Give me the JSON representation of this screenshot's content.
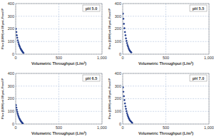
{
  "chart_data": [
    {
      "type": "scatter",
      "title": "pH 5.0",
      "x_label": "Volumetric Throughput (L/m²)",
      "y_label": "Flux (LMH) at 30 psi, Feed P",
      "x": [
        3,
        8,
        13,
        18,
        24,
        30,
        36,
        42,
        48,
        54,
        60,
        66,
        72,
        78,
        84,
        90
      ],
      "values": [
        200,
        175,
        150,
        130,
        110,
        95,
        80,
        68,
        58,
        48,
        40,
        33,
        27,
        20,
        15,
        10
      ],
      "color": "#1f3a8a",
      "marker": "diamond",
      "xlim": [
        0,
        1000
      ],
      "xticks": [
        0,
        500,
        {
          "value": 1000,
          "label": "1,000"
        }
      ],
      "ylim": [
        0,
        400
      ],
      "yticks": [
        0,
        100,
        200,
        300,
        400
      ],
      "grid": true
    },
    {
      "type": "scatter",
      "title": "pH 5.5",
      "x_label": "Volumetric Throughput (L/m²)",
      "y_label": "Flux (LMH) at 30 psi, Feed P",
      "x": [
        3,
        8,
        14,
        20,
        26,
        32,
        38,
        44,
        50,
        56,
        62,
        68,
        74,
        80,
        86,
        92,
        100
      ],
      "values": [
        320,
        280,
        240,
        205,
        175,
        150,
        125,
        105,
        88,
        72,
        60,
        48,
        38,
        30,
        24,
        18,
        14
      ],
      "color": "#1f3a8a",
      "marker": "diamond",
      "xlim": [
        0,
        1000
      ],
      "xticks": [
        0,
        500,
        {
          "value": 1000,
          "label": "1,000"
        }
      ],
      "ylim": [
        0,
        400
      ],
      "yticks": [
        0,
        100,
        200,
        300,
        400
      ],
      "grid": true
    },
    {
      "type": "scatter",
      "title": "pH 6.5",
      "x_label": "Volumetric Throughput (L/m²)",
      "y_label": "Flux (LMH) at 30 psi, Feed P",
      "x": [
        3,
        8,
        13,
        18,
        23,
        28,
        34,
        40,
        46,
        52,
        58,
        64,
        70,
        76,
        82
      ],
      "values": [
        150,
        130,
        112,
        96,
        82,
        70,
        58,
        48,
        40,
        32,
        25,
        19,
        14,
        9,
        5
      ],
      "color": "#1f3a8a",
      "marker": "diamond",
      "xlim": [
        0,
        1000
      ],
      "xticks": [
        0,
        500,
        {
          "value": 1000,
          "label": "1,000"
        }
      ],
      "ylim": [
        0,
        400
      ],
      "yticks": [
        0,
        100,
        200,
        300,
        400
      ],
      "grid": true
    },
    {
      "type": "scatter",
      "title": "pH 7.0",
      "x_label": "Volumetric Throughput (L/m²)",
      "y_label": "Flux (LMH) at 30 psi, Feed P",
      "x": [
        3,
        8,
        14,
        20,
        26,
        32,
        38,
        44,
        50,
        56,
        62,
        68,
        74,
        80,
        88,
        96,
        104,
        110
      ],
      "values": [
        290,
        255,
        220,
        190,
        163,
        140,
        120,
        102,
        86,
        72,
        60,
        50,
        41,
        33,
        26,
        20,
        14,
        10
      ],
      "color": "#1f3a8a",
      "marker": "diamond",
      "xlim": [
        0,
        1000
      ],
      "xticks": [
        0,
        500,
        {
          "value": 1000,
          "label": "1,000"
        }
      ],
      "ylim": [
        0,
        400
      ],
      "yticks": [
        0,
        100,
        200,
        300,
        400
      ],
      "grid": true
    }
  ]
}
